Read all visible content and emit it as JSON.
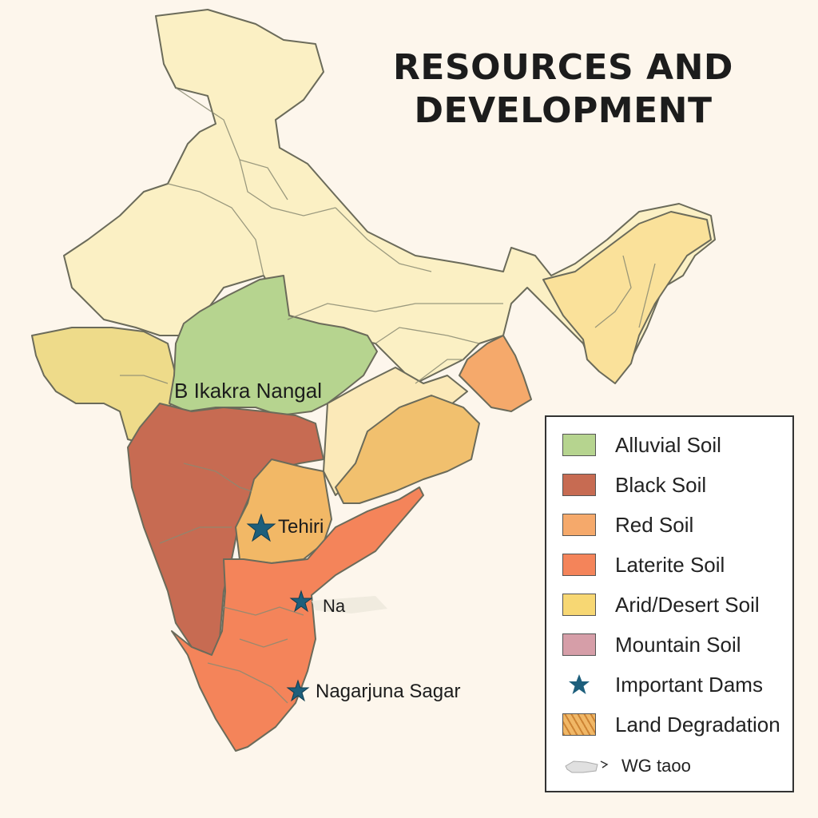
{
  "title": {
    "line1": "RESOURCES AND",
    "line2": "DEVELOPMENT"
  },
  "map_labels": {
    "bhakra": "B Ikakra Nangal",
    "tehiri": "Tehiri",
    "na": "Na",
    "nagarjuna": "Nagarjuna Sagar"
  },
  "legend": {
    "items": [
      {
        "label": "Alluvial Soil",
        "color": "#b6d48f"
      },
      {
        "label": "Black Soil",
        "color": "#c76b52"
      },
      {
        "label": "Red Soil",
        "color": "#f5a96b"
      },
      {
        "label": "Laterite Soil",
        "color": "#f4845a"
      },
      {
        "label": "Arid/Desert Soil",
        "color": "#f7d773"
      },
      {
        "label": "Mountain Soil",
        "color": "#d69ea8"
      },
      {
        "label": "Important Dams",
        "color": "#1d5f7c",
        "icon": "star-icon"
      },
      {
        "label": "Land Degradation",
        "color": "#f0b766",
        "icon": "hatch-pattern"
      },
      {
        "label": "WG taoo",
        "icon": "sketch-icon"
      }
    ]
  },
  "colors": {
    "background": "#fdf6ec",
    "base_land": "#fbf0c4",
    "border": "#6b6b5a",
    "dam": "#1d5f7c"
  }
}
